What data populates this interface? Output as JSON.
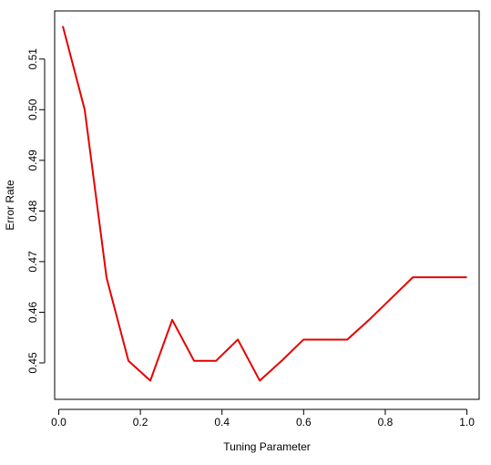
{
  "chart_data": {
    "type": "line",
    "xlabel": "Tuning Parameter",
    "ylabel": "Error Rate",
    "xlim": [
      -0.01,
      1.03
    ],
    "ylim": [
      0.4428,
      0.5195
    ],
    "x_ticks": [
      0.0,
      0.2,
      0.4,
      0.6,
      0.8,
      1.0
    ],
    "x_tick_labels": [
      "0.0",
      "0.2",
      "0.4",
      "0.6",
      "0.8",
      "1.0"
    ],
    "y_ticks": [
      0.45,
      0.46,
      0.47,
      0.48,
      0.49,
      0.5,
      0.51
    ],
    "y_tick_labels": [
      "0.45",
      "0.46",
      "0.47",
      "0.48",
      "0.49",
      "0.50",
      "0.51"
    ],
    "grid": false,
    "series": [
      {
        "color": "#e60000",
        "x": [
          0.01,
          0.0636,
          0.1172,
          0.1708,
          0.2244,
          0.278,
          0.3316,
          0.3852,
          0.4388,
          0.4924,
          0.546,
          0.5996,
          0.6532,
          0.7068,
          0.7604,
          0.814,
          0.8676,
          0.9212,
          0.9748,
          1.0
        ],
        "values": [
          0.5165,
          0.5,
          0.4668,
          0.4504,
          0.4465,
          0.4585,
          0.4504,
          0.4504,
          0.4546,
          0.4465,
          0.4504,
          0.4546,
          0.4546,
          0.4546,
          0.4585,
          0.4627,
          0.4669,
          0.4669,
          0.4669,
          0.4669
        ]
      }
    ]
  }
}
